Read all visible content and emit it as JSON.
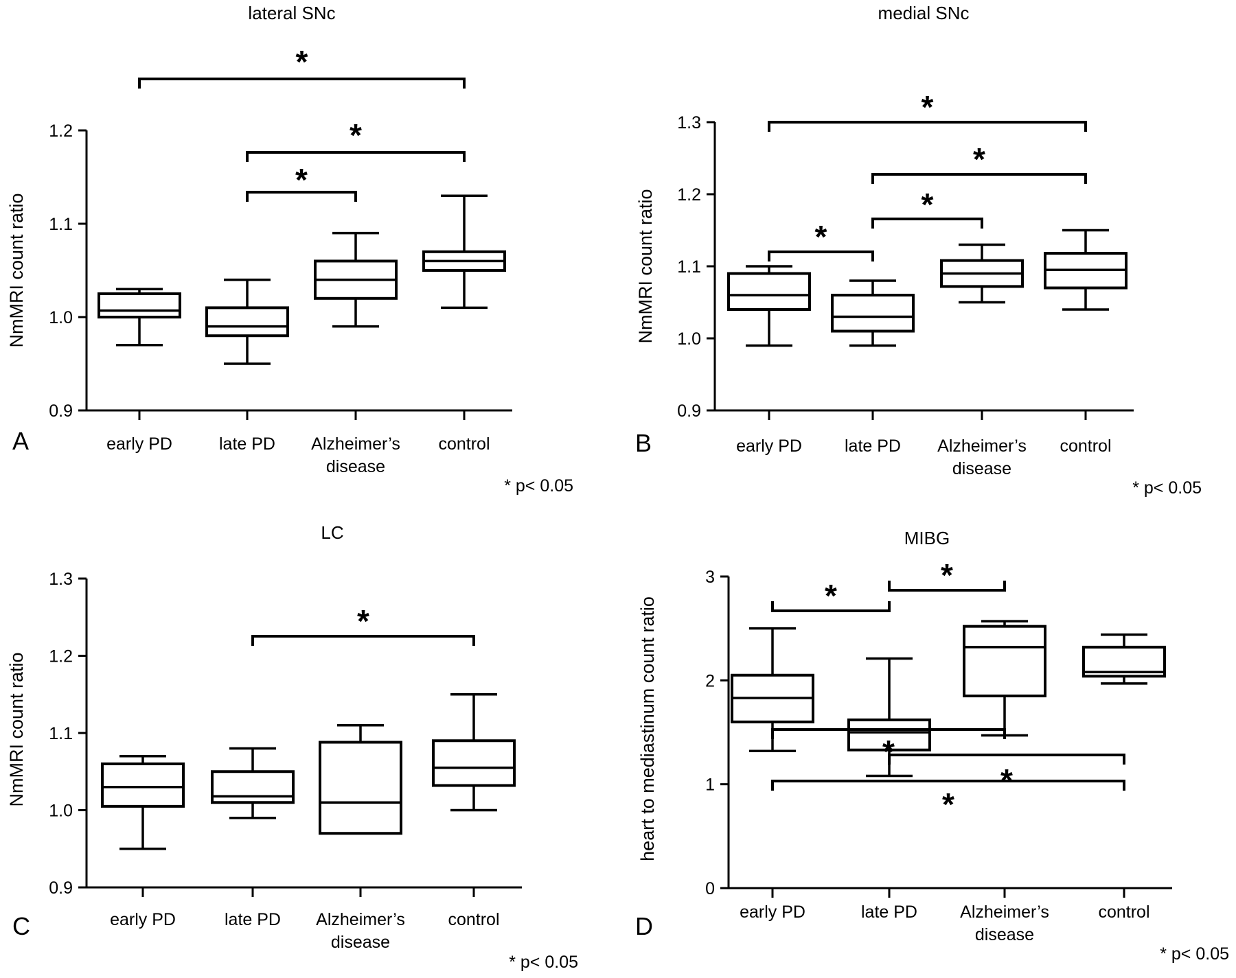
{
  "colors": {
    "ink": "#000000",
    "background": "#ffffff"
  },
  "chart_data": [
    {
      "panel": "A",
      "type": "box",
      "title": "lateral SNc",
      "ylabel": "NmMRI count ratio",
      "ylim": [
        0.9,
        1.2
      ],
      "yticks": [
        {
          "value": 0.9,
          "label": "0.9"
        },
        {
          "value": 1.0,
          "label": "1.0"
        },
        {
          "value": 1.1,
          "label": "1.1"
        },
        {
          "value": 1.2,
          "label": "1.2"
        }
      ],
      "categories": [
        {
          "lines": [
            "early PD"
          ]
        },
        {
          "lines": [
            "late PD"
          ]
        },
        {
          "lines": [
            "Alzheimer’s",
            "disease"
          ]
        },
        {
          "lines": [
            "control"
          ]
        }
      ],
      "boxes": [
        {
          "min": 0.97,
          "q1": 1.0,
          "median": 1.007,
          "q3": 1.025,
          "max": 1.03
        },
        {
          "min": 0.95,
          "q1": 0.98,
          "median": 0.99,
          "q3": 1.01,
          "max": 1.04
        },
        {
          "min": 0.99,
          "q1": 1.02,
          "median": 1.04,
          "q3": 1.06,
          "max": 1.09
        },
        {
          "min": 1.01,
          "q1": 1.05,
          "median": 1.06,
          "q3": 1.07,
          "max": 1.13
        }
      ],
      "significance": [
        {
          "from": 1,
          "to": 2,
          "label": "*"
        },
        {
          "from": 1,
          "to": 3,
          "label": "*"
        },
        {
          "from": 0,
          "to": 3,
          "label": "*"
        }
      ],
      "footnote": "* p< 0.05"
    },
    {
      "panel": "B",
      "type": "box",
      "title": "medial SNc",
      "ylabel": "NmMRI count ratio",
      "ylim": [
        0.9,
        1.3
      ],
      "yticks": [
        {
          "value": 0.9,
          "label": "0.9"
        },
        {
          "value": 1.0,
          "label": "1.0"
        },
        {
          "value": 1.1,
          "label": "1.1"
        },
        {
          "value": 1.2,
          "label": "1.2"
        },
        {
          "value": 1.3,
          "label": "1.3"
        }
      ],
      "categories": [
        {
          "lines": [
            "early PD"
          ]
        },
        {
          "lines": [
            "late PD"
          ]
        },
        {
          "lines": [
            "Alzheimer’s",
            "disease"
          ]
        },
        {
          "lines": [
            "control"
          ]
        }
      ],
      "boxes": [
        {
          "min": 0.99,
          "q1": 1.04,
          "median": 1.06,
          "q3": 1.09,
          "max": 1.1
        },
        {
          "min": 0.99,
          "q1": 1.01,
          "median": 1.03,
          "q3": 1.06,
          "max": 1.08
        },
        {
          "min": 1.05,
          "q1": 1.072,
          "median": 1.09,
          "q3": 1.108,
          "max": 1.13
        },
        {
          "min": 1.04,
          "q1": 1.07,
          "median": 1.095,
          "q3": 1.118,
          "max": 1.15
        }
      ],
      "significance": [
        {
          "from": 0,
          "to": 1,
          "label": "*"
        },
        {
          "from": 1,
          "to": 2,
          "label": "*"
        },
        {
          "from": 1,
          "to": 3,
          "label": "*"
        },
        {
          "from": 0,
          "to": 3,
          "label": "*"
        }
      ],
      "footnote": "* p< 0.05"
    },
    {
      "panel": "C",
      "type": "box",
      "title": "LC",
      "ylabel": "NmMRI count ratio",
      "ylim": [
        0.9,
        1.3
      ],
      "yticks": [
        {
          "value": 0.9,
          "label": "0.9"
        },
        {
          "value": 1.0,
          "label": "1.0"
        },
        {
          "value": 1.1,
          "label": "1.1"
        },
        {
          "value": 1.2,
          "label": "1.2"
        },
        {
          "value": 1.3,
          "label": "1.3"
        }
      ],
      "categories": [
        {
          "lines": [
            "early PD"
          ]
        },
        {
          "lines": [
            "late PD"
          ]
        },
        {
          "lines": [
            "Alzheimer’s",
            "disease"
          ]
        },
        {
          "lines": [
            "control"
          ]
        }
      ],
      "boxes": [
        {
          "min": 0.95,
          "q1": 1.005,
          "median": 1.03,
          "q3": 1.06,
          "max": 1.07
        },
        {
          "min": 0.99,
          "q1": 1.01,
          "median": 1.018,
          "q3": 1.05,
          "max": 1.08
        },
        {
          "min": 0.97,
          "q1": 0.97,
          "median": 1.01,
          "q3": 1.088,
          "max": 1.11
        },
        {
          "min": 1.0,
          "q1": 1.032,
          "median": 1.055,
          "q3": 1.09,
          "max": 1.15
        }
      ],
      "significance": [
        {
          "from": 1,
          "to": 3,
          "label": "*"
        }
      ],
      "footnote": "* p< 0.05"
    },
    {
      "panel": "D",
      "type": "box",
      "title": "MIBG",
      "ylabel": "heart to mediastinum count ratio",
      "ylim": [
        0,
        3
      ],
      "yticks": [
        {
          "value": 0,
          "label": "0"
        },
        {
          "value": 1,
          "label": "1"
        },
        {
          "value": 2,
          "label": "2"
        },
        {
          "value": 3,
          "label": "3"
        }
      ],
      "categories": [
        {
          "lines": [
            "early PD"
          ]
        },
        {
          "lines": [
            "late PD"
          ]
        },
        {
          "lines": [
            "Alzheimer’s",
            "disease"
          ]
        },
        {
          "lines": [
            "control"
          ]
        }
      ],
      "boxes": [
        {
          "min": 1.32,
          "q1": 1.6,
          "median": 1.83,
          "q3": 2.05,
          "max": 2.5
        },
        {
          "min": 1.08,
          "q1": 1.33,
          "median": 1.5,
          "q3": 1.62,
          "max": 2.21
        },
        {
          "min": 1.47,
          "q1": 1.85,
          "median": 2.32,
          "q3": 2.52,
          "max": 2.57
        },
        {
          "min": 1.97,
          "q1": 2.04,
          "median": 2.08,
          "q3": 2.32,
          "max": 2.44
        }
      ],
      "significance": [
        {
          "from": 0,
          "to": 1,
          "label": "*"
        },
        {
          "from": 1,
          "to": 2,
          "label": "*"
        },
        {
          "from": 0,
          "to": 2,
          "label": "*"
        },
        {
          "from": 1,
          "to": 3,
          "label": "*"
        },
        {
          "from": 0,
          "to": 3,
          "label": "*"
        }
      ],
      "footnote": "* p< 0.05"
    }
  ]
}
